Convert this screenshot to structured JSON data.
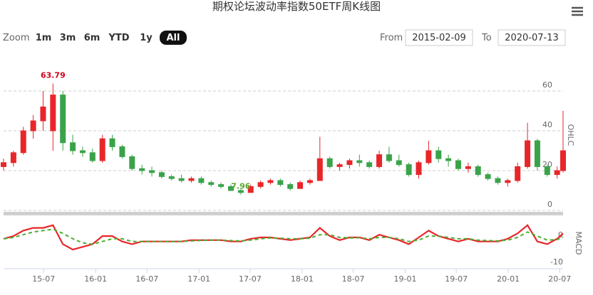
{
  "header": {
    "title": "期权论坛波动率指数50ETF周K线图",
    "zoom_label": "Zoom",
    "zoom_buttons": [
      "1m",
      "3m",
      "6m",
      "YTD",
      "1y",
      "All"
    ],
    "zoom_selected": "All",
    "from_label": "From",
    "from": "2015-02-09",
    "to_label": "To",
    "to": "2020-07-13"
  },
  "chart_data": [
    {
      "type": "candlestick",
      "y_axis_title": "OHLC",
      "up_color": "#e8262a",
      "down_color": "#3aa34a",
      "xlim": [
        "2015-02-09",
        "2020-07-13"
      ],
      "ylim": [
        0,
        80
      ],
      "yticks": [
        0,
        20,
        40,
        60
      ],
      "grid": true,
      "x": [
        "2015-02-09",
        "2015-03-16",
        "2015-04-20",
        "2015-05-25",
        "2015-06-29",
        "2015-08-03",
        "2015-09-07",
        "2015-10-12",
        "2015-11-16",
        "2015-12-21",
        "2016-01-25",
        "2016-02-29",
        "2016-04-04",
        "2016-05-09",
        "2016-06-13",
        "2016-07-18",
        "2016-08-22",
        "2016-09-26",
        "2016-10-31",
        "2016-12-05",
        "2017-01-09",
        "2017-02-13",
        "2017-03-20",
        "2017-04-24",
        "2017-05-29",
        "2017-07-03",
        "2017-08-07",
        "2017-09-11",
        "2017-10-16",
        "2017-11-20",
        "2017-12-25",
        "2018-01-29",
        "2018-03-05",
        "2018-04-09",
        "2018-05-14",
        "2018-06-18",
        "2018-07-23",
        "2018-08-27",
        "2018-10-01",
        "2018-11-05",
        "2018-12-10",
        "2019-01-14",
        "2019-02-18",
        "2019-03-25",
        "2019-04-29",
        "2019-06-03",
        "2019-07-08",
        "2019-08-12",
        "2019-09-16",
        "2019-10-21",
        "2019-11-25",
        "2019-12-30",
        "2020-02-03",
        "2020-03-09",
        "2020-04-13",
        "2020-05-18",
        "2020-06-22",
        "2020-07-13"
      ],
      "open": [
        22,
        24,
        29,
        40,
        45,
        40,
        58,
        34,
        30,
        29,
        25,
        36,
        32,
        27,
        21,
        20,
        19,
        17,
        16,
        15,
        16,
        14,
        13,
        12,
        10,
        9,
        12,
        14,
        15,
        13,
        11,
        14,
        15,
        26,
        22,
        23,
        25,
        24,
        22,
        28,
        25,
        23,
        18,
        24,
        30,
        26,
        25,
        21,
        22,
        18,
        16,
        14,
        15,
        22,
        35,
        22,
        18,
        20
      ],
      "high": [
        26,
        30,
        42,
        48,
        60,
        63.79,
        60,
        38,
        32,
        31,
        38,
        38,
        33,
        28,
        23,
        22,
        20,
        18,
        18,
        17,
        17,
        15,
        14,
        13,
        11,
        13,
        15,
        16,
        16,
        14,
        15,
        16,
        37,
        27,
        24,
        26,
        28,
        25,
        30,
        32,
        28,
        24,
        25,
        35,
        32,
        28,
        26,
        24,
        23,
        19,
        17,
        16,
        24,
        44,
        36,
        23,
        22,
        50
      ],
      "low": [
        20,
        22,
        28,
        36,
        40,
        30,
        30,
        28,
        27,
        24,
        24,
        30,
        26,
        20,
        18,
        17,
        16,
        15,
        14,
        14,
        13,
        12,
        11,
        10,
        7.96,
        9,
        11,
        13,
        12,
        10,
        11,
        13,
        15,
        21,
        20,
        21,
        22,
        21,
        21,
        24,
        22,
        17,
        16,
        23,
        24,
        22,
        20,
        19,
        17,
        15,
        13,
        12,
        14,
        21,
        20,
        17,
        16,
        19
      ],
      "close": [
        24,
        29,
        40,
        45,
        52,
        58,
        34,
        30,
        29,
        25,
        36,
        32,
        27,
        21,
        20,
        19,
        17,
        16,
        15,
        16,
        14,
        13,
        12,
        10,
        9,
        12,
        14,
        15,
        13,
        11,
        14,
        15,
        26,
        22,
        23,
        25,
        24,
        22,
        28,
        25,
        23,
        18,
        24,
        30,
        26,
        25,
        21,
        22,
        18,
        16,
        14,
        15,
        22,
        35,
        22,
        18,
        20,
        30
      ],
      "annotations": [
        {
          "x": "2015-08-03",
          "value": 63.79,
          "color": "#d0021b"
        },
        {
          "x": "2017-05-29",
          "value": 7.96,
          "color": "#5aaa2e"
        }
      ]
    },
    {
      "type": "line",
      "y_axis_title": "MACD",
      "ylim": [
        -10,
        6
      ],
      "yticks": [
        -10,
        0
      ],
      "xticks": [
        {
          "value": "2015-07-01",
          "label": "15-07"
        },
        {
          "value": "2016-01-01",
          "label": "16-01"
        },
        {
          "value": "2016-07-01",
          "label": "16-07"
        },
        {
          "value": "2017-01-01",
          "label": "17-01"
        },
        {
          "value": "2017-07-01",
          "label": "17-07"
        },
        {
          "value": "2018-01-01",
          "label": "18-01"
        },
        {
          "value": "2018-07-01",
          "label": "18-07"
        },
        {
          "value": "2019-01-01",
          "label": "19-01"
        },
        {
          "value": "2019-07-01",
          "label": "19-07"
        },
        {
          "value": "2020-01-01",
          "label": "20-01"
        },
        {
          "value": "2020-07-01",
          "label": "20-07"
        }
      ],
      "series": [
        {
          "color": "#e8262a",
          "dashed": false,
          "values": [
            0,
            1,
            3,
            4,
            4,
            5,
            -2,
            -4,
            -3,
            -2,
            1,
            1,
            -1,
            -2,
            -1,
            -1,
            -1,
            -1,
            -1,
            -0.5,
            -0.5,
            -0.5,
            -0.5,
            -1,
            -1,
            0,
            0.5,
            0.5,
            0,
            -0.5,
            0,
            0.5,
            4,
            1,
            -0.5,
            0.5,
            0.5,
            -0.5,
            1.5,
            0.5,
            -0.5,
            -2,
            0.5,
            3,
            1,
            0,
            -1,
            0,
            -1,
            -1,
            -1,
            0,
            2,
            5,
            -1,
            -2,
            0,
            2
          ]
        },
        {
          "color": "#4caf32",
          "dashed": true,
          "values": [
            0,
            0.5,
            1.5,
            2.5,
            3,
            3.5,
            2,
            0,
            -1.5,
            -2,
            -1,
            0,
            0,
            -1,
            -1,
            -1,
            -1,
            -1,
            -1,
            -0.8,
            -0.6,
            -0.5,
            -0.5,
            -0.7,
            -0.8,
            -0.5,
            0,
            0.3,
            0.2,
            0,
            0,
            0.2,
            1.5,
            1.5,
            0.5,
            0.3,
            0.4,
            0,
            0.5,
            0.5,
            0,
            -1,
            -0.5,
            1,
            1,
            0.5,
            0,
            0,
            -0.5,
            -0.7,
            -0.8,
            -0.5,
            0.5,
            2.5,
            1,
            -0.5,
            -0.3,
            0.5
          ]
        }
      ]
    }
  ]
}
